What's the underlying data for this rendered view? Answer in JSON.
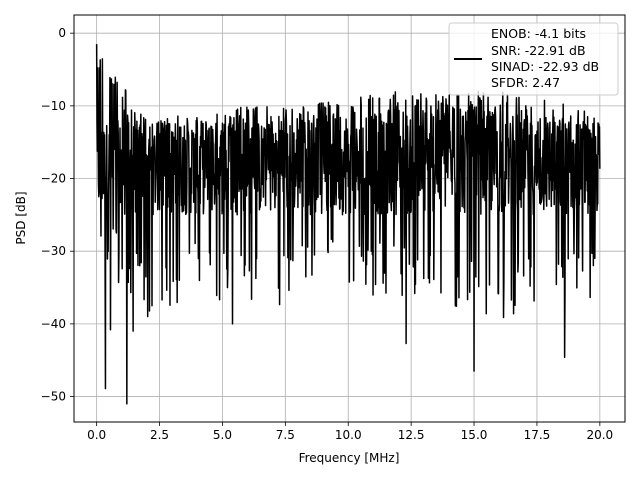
{
  "chart_data": {
    "type": "line",
    "title": "",
    "xlabel": "Frequency [MHz]",
    "ylabel": "PSD [dB]",
    "xlim": [
      -0.9,
      21.0
    ],
    "ylim": [
      -53.5,
      2.5
    ],
    "xticks": [
      0.0,
      2.5,
      5.0,
      7.5,
      10.0,
      12.5,
      15.0,
      17.5,
      20.0
    ],
    "xtick_labels": [
      "0.0",
      "2.5",
      "5.0",
      "7.5",
      "10.0",
      "12.5",
      "15.0",
      "17.5",
      "20.0"
    ],
    "yticks": [
      0,
      -10,
      -20,
      -30,
      -40,
      -50
    ],
    "ytick_labels": [
      "0",
      "−10",
      "−20",
      "−30",
      "−40",
      "−50"
    ],
    "grid": true,
    "legend_position": "top-right",
    "legend_entries": [
      "ENOB: -4.1 bits",
      "SNR: -22.91 dB",
      "SINAD: -22.93 dB",
      "SFDR: 2.47"
    ],
    "series": [
      {
        "color": "#000000",
        "x_range": [
          0.0,
          20.0
        ],
        "envelope_upper_db": [
          -1,
          -12,
          -11,
          -10,
          -10,
          -9,
          -8,
          -8,
          -8,
          -9,
          -10
        ],
        "envelope_lower_db": [
          -30,
          -40,
          -36,
          -38,
          -37,
          -36,
          -37,
          -38,
          -40,
          -38,
          -38
        ],
        "typical_band_db": [
          -25,
          -12
        ],
        "notable_points": [
          {
            "x": 0.0,
            "y": -1.5
          },
          {
            "x": 0.35,
            "y": -48.9
          },
          {
            "x": 0.55,
            "y": -40.8
          },
          {
            "x": 1.2,
            "y": -51.0
          },
          {
            "x": 1.45,
            "y": -41.0
          },
          {
            "x": 5.4,
            "y": -40.0
          },
          {
            "x": 12.3,
            "y": -42.7
          },
          {
            "x": 15.0,
            "y": -46.5
          },
          {
            "x": 18.6,
            "y": -44.6
          }
        ]
      }
    ]
  }
}
